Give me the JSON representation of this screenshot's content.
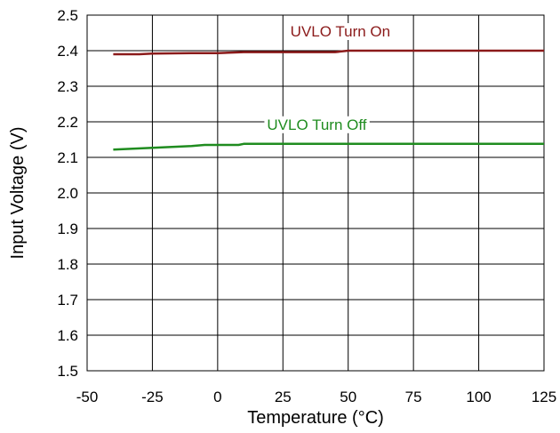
{
  "chart_data": {
    "type": "line",
    "title": "",
    "xlabel": "Temperature (°C)",
    "ylabel": "Input Voltage (V)",
    "xlim": [
      -50,
      125
    ],
    "ylim": [
      1.5,
      2.5
    ],
    "xticks": [
      -50,
      -25,
      0,
      25,
      50,
      75,
      100,
      125
    ],
    "yticks": [
      1.5,
      1.6,
      1.7,
      1.8,
      1.9,
      2.0,
      2.1,
      2.2,
      2.3,
      2.4,
      2.5
    ],
    "xtick_labels": [
      "-50",
      "-25",
      "0",
      "25",
      "50",
      "75",
      "100",
      "125"
    ],
    "ytick_labels": [
      "1.5",
      "1.6",
      "1.7",
      "1.8",
      "1.9",
      "2.0",
      "2.1",
      "2.2",
      "2.3",
      "2.4",
      "2.5"
    ],
    "grid": true,
    "series": [
      {
        "name": "UVLO Turn On",
        "color": "#8b1a1a",
        "x": [
          -40,
          -30,
          -25,
          -10,
          0,
          10,
          25,
          45,
          50,
          75,
          100,
          125
        ],
        "y": [
          2.39,
          2.39,
          2.392,
          2.393,
          2.393,
          2.396,
          2.396,
          2.396,
          2.4,
          2.4,
          2.4,
          2.4
        ]
      },
      {
        "name": "UVLO Turn Off",
        "color": "#1f8c1f",
        "x": [
          -40,
          -25,
          -10,
          -5,
          8,
          10,
          25,
          50,
          75,
          100,
          125
        ],
        "y": [
          2.122,
          2.127,
          2.132,
          2.135,
          2.135,
          2.138,
          2.138,
          2.138,
          2.138,
          2.138,
          2.138
        ]
      }
    ]
  }
}
